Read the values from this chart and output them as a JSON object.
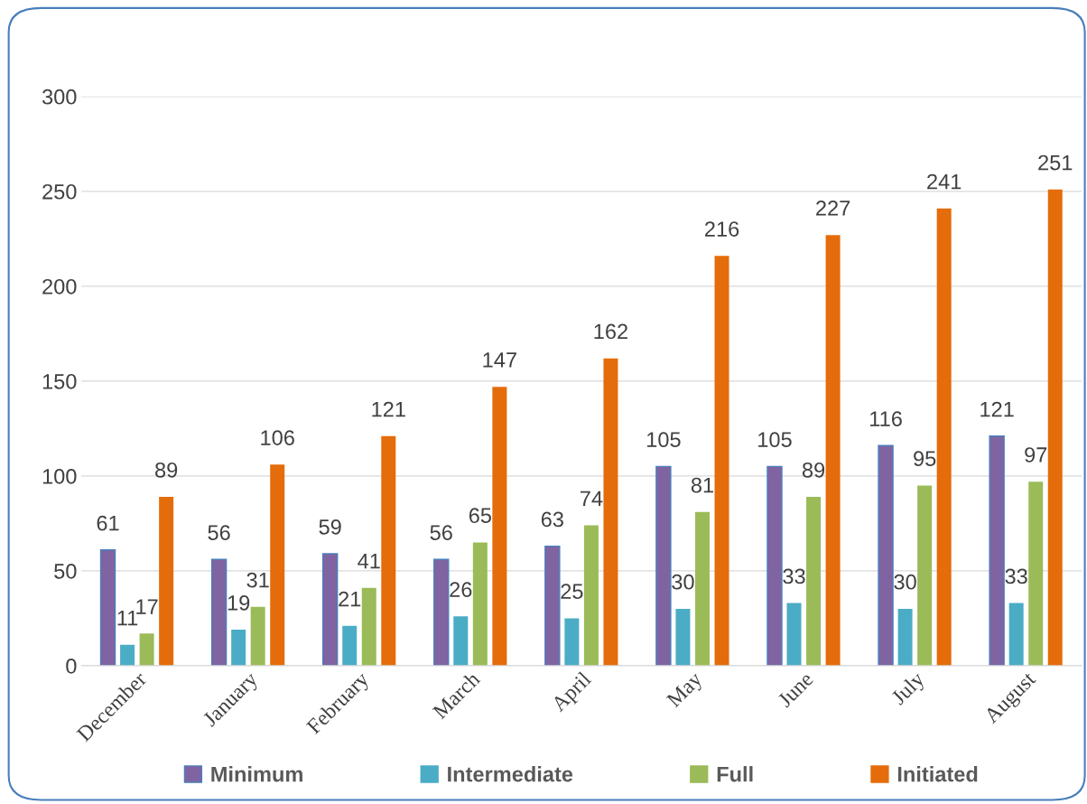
{
  "chart_data": {
    "type": "bar",
    "categories": [
      "December",
      "January",
      "February",
      "March",
      "April",
      "May",
      "June",
      "July",
      "August"
    ],
    "series": [
      {
        "name": "Minimum",
        "color": "#8064a2",
        "values": [
          61,
          56,
          59,
          56,
          63,
          105,
          105,
          116,
          121
        ]
      },
      {
        "name": "Intermediate",
        "color": "#4bacc6",
        "values": [
          11,
          19,
          21,
          26,
          25,
          30,
          33,
          30,
          33
        ]
      },
      {
        "name": "Full",
        "color": "#9bbb59",
        "values": [
          17,
          31,
          41,
          65,
          74,
          81,
          89,
          95,
          97
        ]
      },
      {
        "name": "Initiated",
        "color": "#e46c0a",
        "values": [
          89,
          106,
          121,
          147,
          162,
          216,
          227,
          241,
          251
        ]
      }
    ],
    "ylim": [
      0,
      300
    ],
    "yticks": [
      0,
      50,
      100,
      150,
      200,
      250,
      300
    ],
    "grid": "y",
    "legend": "bottom",
    "data_labels": true
  }
}
